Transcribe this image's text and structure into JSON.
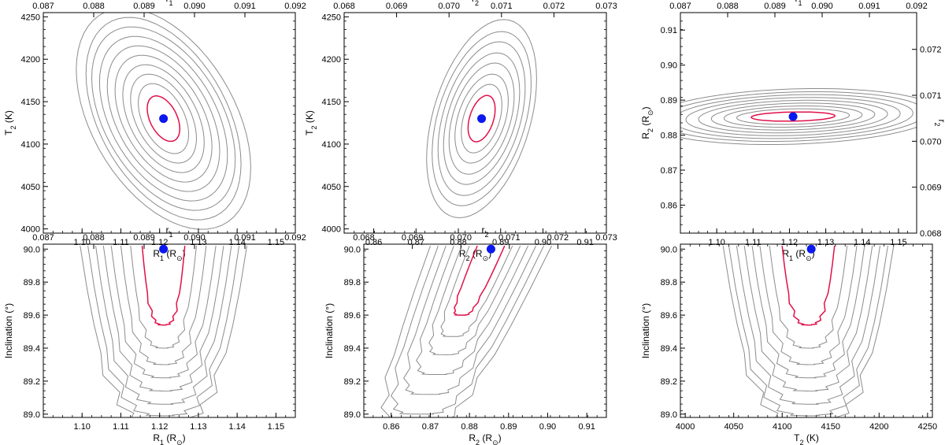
{
  "colors": {
    "contour": "#8c8c8c",
    "contour_best": "#e0114a",
    "best_fit_point": "#0b18ee",
    "axis": "#000000"
  },
  "chart_data": [
    {
      "type": "contour",
      "xlabel": "R_1 (R_sun)",
      "ylabel": "T_2 (K)",
      "x2label": "r_1",
      "xlim": [
        1.09,
        1.155
      ],
      "ylim": [
        3995,
        4255
      ],
      "x2lim": [
        0.087,
        0.092
      ],
      "xticks": [
        "1.10",
        "1.11",
        "1.12",
        "1.13",
        "1.14",
        "1.15"
      ],
      "yticks": [
        "4000",
        "4050",
        "4100",
        "4150",
        "4200",
        "4250"
      ],
      "x2ticks": [
        "0.087",
        "0.088",
        "0.089",
        "0.090",
        "0.091",
        "0.092"
      ],
      "best_fit": {
        "x": 1.121,
        "y": 4130
      },
      "contours": {
        "center": [
          1.121,
          4130
        ],
        "rx": [
          0.0042,
          0.0065,
          0.0085,
          0.0105,
          0.0125,
          0.0145,
          0.0165,
          0.0185,
          0.02,
          0.0225
        ],
        "ry": [
          24,
          37,
          47,
          57,
          67,
          77,
          87,
          97,
          107,
          117
        ],
        "tilt": -0.9
      }
    },
    {
      "type": "contour",
      "xlabel": "R_2 (R_sun)",
      "ylabel": "T_2 (K)",
      "x2label": "r_2",
      "xlim": [
        0.853,
        0.915
      ],
      "ylim": [
        3995,
        4255
      ],
      "x2lim": [
        0.068,
        0.073
      ],
      "xticks": [
        "0.86",
        "0.87",
        "0.88",
        "0.89",
        "0.90",
        "0.91"
      ],
      "yticks": [
        "4000",
        "4050",
        "4100",
        "4150",
        "4200",
        "4250"
      ],
      "x2ticks": [
        "0.068",
        "0.069",
        "0.070",
        "0.071",
        "0.072",
        "0.073"
      ],
      "best_fit": {
        "x": 0.8855,
        "y": 4130
      },
      "contours": {
        "center": [
          0.8855,
          4130
        ],
        "rx": [
          0.0032,
          0.0048,
          0.0063,
          0.0077,
          0.009,
          0.0103,
          0.0117,
          0.013
        ],
        "ry": [
          25,
          37,
          48,
          60,
          71,
          83,
          94,
          107
        ],
        "tilt": 0.8
      }
    },
    {
      "type": "contour",
      "xlabel": "R_1 (R_sun)",
      "ylabel": "R_2 (R_sun)",
      "x2label": "r_1",
      "y2label": "r_2",
      "xlim": [
        1.09,
        1.155
      ],
      "ylim": [
        0.852,
        0.915
      ],
      "x2lim": [
        0.087,
        0.092
      ],
      "y2lim": [
        0.068,
        0.0728
      ],
      "xticks": [
        "1.10",
        "1.11",
        "1.12",
        "1.13",
        "1.14",
        "1.15"
      ],
      "yticks": [
        "0.86",
        "0.87",
        "0.88",
        "0.89",
        "0.90",
        "0.91"
      ],
      "x2ticks": [
        "0.087",
        "0.088",
        "0.089",
        "0.090",
        "0.091",
        "0.092"
      ],
      "y2ticks": [
        "0.068",
        "0.069",
        "0.070",
        "0.071",
        "0.072"
      ],
      "best_fit": {
        "x": 1.121,
        "y": 0.8853
      },
      "contours": {
        "center": [
          1.121,
          0.8853
        ],
        "rx": [
          0.0115,
          0.0155,
          0.019,
          0.0225,
          0.026,
          0.0295,
          0.033,
          0.0365,
          0.04
        ],
        "ry": [
          0.0013,
          0.0022,
          0.003,
          0.0038,
          0.0046,
          0.0054,
          0.0062,
          0.007,
          0.0079
        ],
        "tilt": 0.3
      }
    },
    {
      "type": "contour",
      "xlabel": "R_1 (R_sun)",
      "ylabel": "Inclination (°)",
      "x2label": "r_1",
      "xlim": [
        1.09,
        1.155
      ],
      "ylim": [
        88.98,
        90.03
      ],
      "x2lim": [
        0.087,
        0.092
      ],
      "xticks": [
        "1.10",
        "1.11",
        "1.12",
        "1.13",
        "1.14",
        "1.15"
      ],
      "yticks": [
        "89.0",
        "89.2",
        "89.4",
        "89.6",
        "89.8",
        "90.0"
      ],
      "x2ticks": [
        "0.087",
        "0.088",
        "0.089",
        "0.090",
        "0.091",
        "0.092"
      ],
      "best_fit": {
        "x": 1.121,
        "y": 90.0
      },
      "contours": {
        "center": [
          1.121,
          90.0
        ],
        "hw": [
          0.0055,
          0.0085,
          0.011,
          0.0135,
          0.0155,
          0.0175,
          0.0195,
          0.0215
        ],
        "depth": [
          0.48,
          0.62,
          0.72,
          0.8,
          0.88,
          0.96,
          1.03,
          1.08
        ],
        "shape": "u"
      }
    },
    {
      "type": "contour",
      "xlabel": "R_2 (R_sun)",
      "ylabel": "Inclination (°)",
      "x2label": "r_2",
      "xlim": [
        0.853,
        0.915
      ],
      "ylim": [
        88.98,
        90.03
      ],
      "x2lim": [
        0.068,
        0.073
      ],
      "xticks": [
        "0.86",
        "0.87",
        "0.88",
        "0.89",
        "0.90",
        "0.91"
      ],
      "yticks": [
        "89.0",
        "89.2",
        "89.4",
        "89.6",
        "89.8",
        "90.0"
      ],
      "x2ticks": [
        "0.068",
        "0.069",
        "0.070",
        "0.071",
        "0.072",
        "0.073"
      ],
      "best_fit": {
        "x": 0.8855,
        "y": 90.0
      },
      "contours": {
        "center": [
          0.8855,
          90.0
        ],
        "hw": [
          0.0035,
          0.0055,
          0.0075,
          0.0095,
          0.0115,
          0.0135,
          0.0155
        ],
        "depth": [
          0.42,
          0.55,
          0.66,
          0.78,
          0.9,
          1.02,
          1.1
        ],
        "shape": "u",
        "shear": 0.018
      }
    },
    {
      "type": "contour",
      "xlabel": "T_2 (K)",
      "ylabel": "Inclination (°)",
      "xlim": [
        3995,
        4255
      ],
      "ylim": [
        88.98,
        90.03
      ],
      "xticks": [
        "4000",
        "4050",
        "4100",
        "4150",
        "4200",
        "4250"
      ],
      "yticks": [
        "89.0",
        "89.2",
        "89.4",
        "89.6",
        "89.8",
        "90.0"
      ],
      "best_fit": {
        "x": 4130,
        "y": 90.0
      },
      "contours": {
        "center": [
          4127,
          90.0
        ],
        "hw": [
          27,
          40,
          50,
          58,
          66,
          74,
          82,
          88
        ],
        "depth": [
          0.48,
          0.62,
          0.72,
          0.8,
          0.88,
          0.96,
          1.03,
          1.08
        ],
        "shape": "u"
      }
    }
  ]
}
